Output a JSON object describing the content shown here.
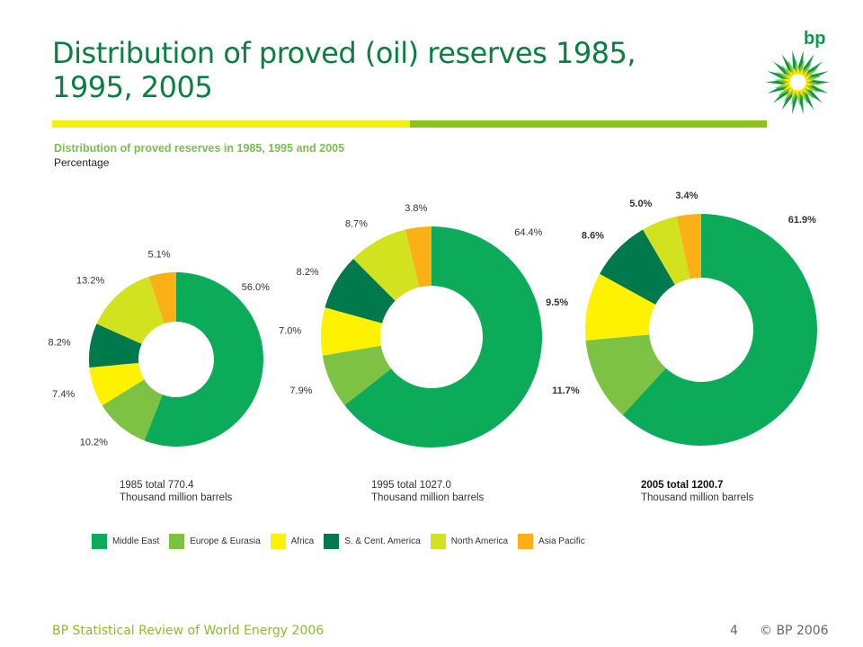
{
  "header": {
    "title": "Distribution of proved (oil) reserves 1985, 1995, 2005",
    "logo_text": "bp"
  },
  "colors": {
    "Middle East": "#0bab5a",
    "Europe & Eurasia": "#7dc243",
    "Africa": "#fff200",
    "S. & Cent. America": "#007a4d",
    "North America": "#d2e21f",
    "Asia Pacific": "#fbb116"
  },
  "chart_data": {
    "type": "pie",
    "variant": "donut",
    "title": "Distribution of proved reserves in 1985, 1995 and 2005",
    "subtitle": "Percentage",
    "categories": [
      "Middle East",
      "Europe & Eurasia",
      "Africa",
      "S. & Cent. America",
      "North America",
      "Asia Pacific"
    ],
    "legend_position": "bottom",
    "charts": [
      {
        "year": "1985",
        "values": [
          56.0,
          10.2,
          7.4,
          8.2,
          13.2,
          5.1
        ],
        "labels": [
          "56.0%",
          "10.2%",
          "7.4%",
          "8.2%",
          "13.2%",
          "5.1%"
        ],
        "total_label": "1985 total 770.4",
        "unit_label": "Thousand million barrels"
      },
      {
        "year": "1995",
        "values": [
          64.4,
          7.9,
          7.0,
          8.2,
          8.7,
          3.8
        ],
        "labels": [
          "64.4%",
          "7.9%",
          "7.0%",
          "8.2%",
          "8.7%",
          "3.8%"
        ],
        "total_label": "1995 total 1027.0",
        "unit_label": "Thousand million barrels"
      },
      {
        "year": "2005",
        "values": [
          61.9,
          11.7,
          9.5,
          8.6,
          5.0,
          3.4
        ],
        "labels": [
          "61.9%",
          "11.7%",
          "9.5%",
          "8.6%",
          "5.0%",
          "3.4%"
        ],
        "total_label": "2005 total 1200.7",
        "unit_label": "Thousand million barrels"
      }
    ]
  },
  "footer": {
    "source": "BP Statistical Review of World Energy 2006",
    "page": "4",
    "copyright": "© BP 2006"
  }
}
